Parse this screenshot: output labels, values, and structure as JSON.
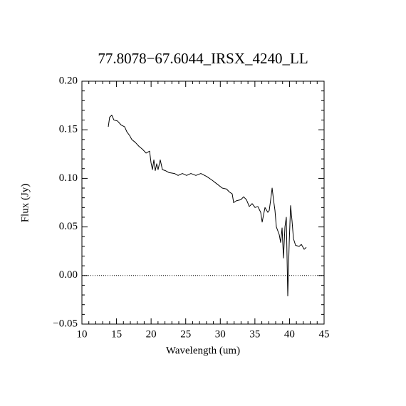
{
  "chart_data": {
    "type": "line",
    "title": "77.8078−67.6044_IRSX_4240_LL",
    "x_label": "Wavelength (um)",
    "y_label": "Flux (Jy)",
    "xlim": [
      10,
      45
    ],
    "xticks": [
      10,
      15,
      20,
      25,
      30,
      35,
      40,
      45
    ],
    "ylim": [
      -0.05,
      0.2
    ],
    "yticks": [
      {
        "value": -0.05,
        "label": "−0.05"
      },
      {
        "value": 0,
        "label": "0.00"
      },
      {
        "value": 0.05,
        "label": "0.05"
      },
      {
        "value": 0.1,
        "label": "0.10"
      },
      {
        "value": 0.15,
        "label": "0.15"
      },
      {
        "value": 0.2,
        "label": "0.20"
      }
    ],
    "minor_divisions": 5,
    "zero_line": true,
    "color": "#000000",
    "x": [
      13.81,
      14.01,
      14.32,
      14.63,
      15.15,
      15.66,
      16.18,
      16.49,
      16.9,
      17.21,
      17.72,
      18.24,
      18.75,
      19.27,
      19.78,
      19.99,
      20.19,
      20.4,
      20.6,
      20.81,
      21.01,
      21.32,
      21.63,
      22.04,
      22.56,
      23.38,
      23.9,
      24.52,
      25.13,
      25.75,
      26.47,
      27.19,
      28.02,
      28.84,
      29.56,
      30.28,
      30.9,
      31.31,
      31.72,
      31.93,
      32.34,
      32.96,
      33.37,
      33.78,
      34.19,
      34.6,
      35.02,
      35.43,
      35.84,
      36.05,
      36.46,
      36.87,
      37.07,
      37.28,
      37.49,
      37.69,
      37.9,
      38.1,
      38.52,
      38.72,
      38.93,
      39.13,
      39.34,
      39.54,
      39.75,
      39.96,
      40.16,
      40.37,
      40.57,
      40.88,
      41.4,
      41.71,
      42.12,
      42.43
    ],
    "values": [
      0.153,
      0.163,
      0.165,
      0.16,
      0.159,
      0.155,
      0.153,
      0.148,
      0.144,
      0.14,
      0.137,
      0.133,
      0.13,
      0.126,
      0.128,
      0.116,
      0.109,
      0.119,
      0.108,
      0.115,
      0.109,
      0.119,
      0.109,
      0.108,
      0.106,
      0.105,
      0.103,
      0.105,
      0.103,
      0.105,
      0.103,
      0.105,
      0.102,
      0.098,
      0.094,
      0.09,
      0.089,
      0.086,
      0.084,
      0.075,
      0.077,
      0.078,
      0.081,
      0.078,
      0.071,
      0.074,
      0.07,
      0.071,
      0.065,
      0.055,
      0.07,
      0.065,
      0.067,
      0.078,
      0.09,
      0.078,
      0.067,
      0.05,
      0.042,
      0.034,
      0.049,
      0.018,
      0.05,
      0.06,
      -0.021,
      0.034,
      0.072,
      0.056,
      0.038,
      0.031,
      0.03,
      0.032,
      0.027,
      0.029
    ]
  }
}
